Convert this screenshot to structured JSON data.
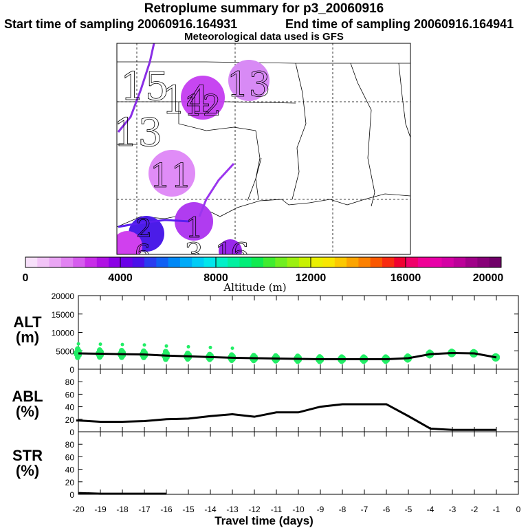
{
  "header": {
    "title": "Retroplume summary for p3_20060916",
    "start_label": "Start time of sampling 20060916.164931",
    "end_label": "End time of sampling 20060916.164941",
    "met_label": "Meteorological data used is GFS"
  },
  "map": {
    "day_labels": [
      "15",
      "14",
      "13",
      "12",
      "13",
      "11",
      "2",
      "1",
      "6",
      "3",
      "1",
      "6"
    ]
  },
  "colorbar": {
    "ticks": [
      "0",
      "4000",
      "8000",
      "12000",
      "16000",
      "20000"
    ],
    "label": "Altitude (m)"
  },
  "chart_data": [
    {
      "type": "scatter",
      "name": "ALT",
      "ylabel": "ALT\n(m)",
      "ylabel_line1": "ALT",
      "ylabel_line2": "(m)",
      "ylim": [
        0,
        20000
      ],
      "yticks": [
        "0",
        "5000",
        "10000",
        "15000",
        "20000"
      ],
      "x": [
        -20,
        -19,
        -18,
        -17,
        -16,
        -15,
        -14,
        -13,
        -12,
        -11,
        -10,
        -9,
        -8,
        -7,
        -6,
        -5,
        -4,
        -3,
        -2,
        -1
      ],
      "mean_altitude": [
        4300,
        4200,
        4100,
        4000,
        3700,
        3500,
        3300,
        3100,
        3000,
        2900,
        2800,
        2700,
        2700,
        2700,
        2700,
        3000,
        4100,
        4400,
        4300,
        3200
      ],
      "point_color": "#22ee66",
      "line_color": "#000000"
    },
    {
      "type": "line",
      "name": "ABL",
      "ylabel_line1": "ABL",
      "ylabel_line2": "(%)",
      "ylim": [
        0,
        100
      ],
      "yticks": [
        "0",
        "20",
        "40",
        "60",
        "80"
      ],
      "x": [
        -20,
        -19,
        -18,
        -17,
        -16,
        -15,
        -14,
        -13,
        -12,
        -11,
        -10,
        -9,
        -8,
        -7,
        -6,
        -5,
        -4,
        -3,
        -2,
        -1
      ],
      "values": [
        18,
        16,
        16,
        17,
        20,
        21,
        25,
        28,
        24,
        31,
        31,
        40,
        44,
        44,
        44,
        25,
        5,
        3,
        3,
        3
      ]
    },
    {
      "type": "line",
      "name": "STR",
      "ylabel_line1": "STR",
      "ylabel_line2": "(%)",
      "ylim": [
        0,
        100
      ],
      "yticks": [
        "0",
        "20",
        "40",
        "60",
        "80"
      ],
      "x": [
        -20,
        -19,
        -18,
        -17,
        -16
      ],
      "values": [
        2,
        1,
        1,
        1,
        1
      ],
      "xlabel": "Travel time (days)",
      "xticks": [
        "-20",
        "-19",
        "-18",
        "-17",
        "-16",
        "-15",
        "-14",
        "-13",
        "-12",
        "-11",
        "-10",
        "-9",
        "-8",
        "-7",
        "-6",
        "-5",
        "-4",
        "-3",
        "-2",
        "-1",
        "0"
      ]
    }
  ]
}
